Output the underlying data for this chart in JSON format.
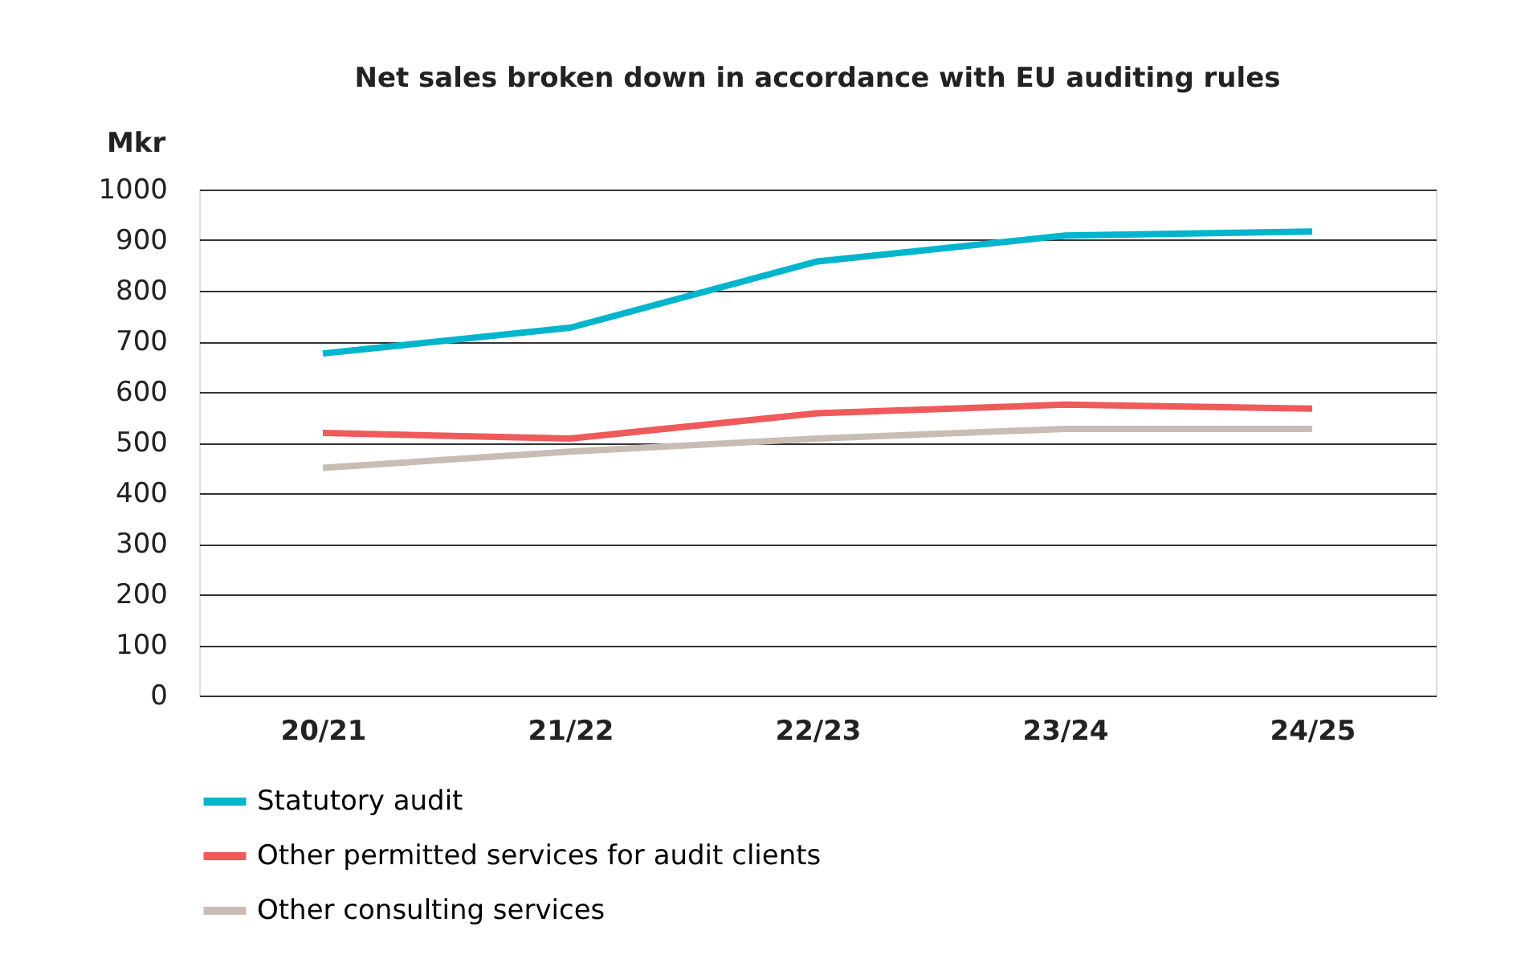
{
  "chart_data": {
    "type": "line",
    "title": "Net sales broken down in accordance with EU auditing rules",
    "ylabel": "Mkr",
    "categories": [
      "20/21",
      "21/22",
      "22/23",
      "23/24",
      "24/25"
    ],
    "series": [
      {
        "name": "Statutory audit",
        "color": "#00b5cc",
        "values": [
          676,
          727,
          858,
          909,
          917
        ]
      },
      {
        "name": "Other permitted services for audit clients",
        "color": "#ef5a5a",
        "values": [
          519,
          508,
          558,
          575,
          567
        ]
      },
      {
        "name": "Other consulting services",
        "color": "#c8bdb5",
        "values": [
          450,
          482,
          508,
          527,
          527
        ]
      }
    ],
    "ylim": [
      0,
      1000
    ],
    "yticks": [
      0,
      100,
      200,
      300,
      400,
      500,
      600,
      700,
      800,
      900,
      1000
    ],
    "grid": "y",
    "legend": "bottom",
    "marker": "none",
    "line_style": "solid"
  }
}
